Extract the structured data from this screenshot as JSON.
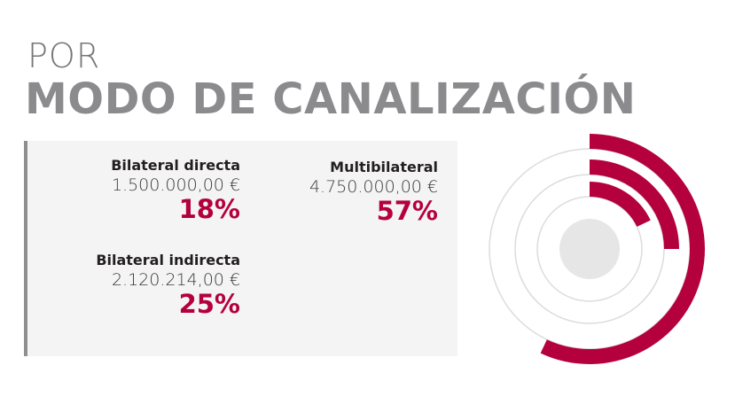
{
  "title": {
    "line1": "POR",
    "line2": "MODO DE CANALIZACIÓN"
  },
  "chart_data": {
    "type": "pie",
    "categories": [
      "Bilateral directa",
      "Multibilateral",
      "Bilateral indirecta"
    ],
    "amounts": [
      "1.500.000,00 €",
      "4.750.000,00 €",
      "2.120.214,00 €"
    ],
    "values": [
      18,
      57,
      25
    ],
    "percent_labels": [
      "18%",
      "57%",
      "25%"
    ],
    "rings": [
      {
        "category": "Bilateral directa",
        "percent": 18
      },
      {
        "category": "Bilateral indirecta",
        "percent": 25
      },
      {
        "category": "Multibilateral",
        "percent": 57
      }
    ],
    "colors": {
      "accent": "#b5003e",
      "ring_track": "#dcdcde",
      "center": "#e6e6e7",
      "text": "#231f20",
      "title": "#8b8b8e"
    }
  }
}
